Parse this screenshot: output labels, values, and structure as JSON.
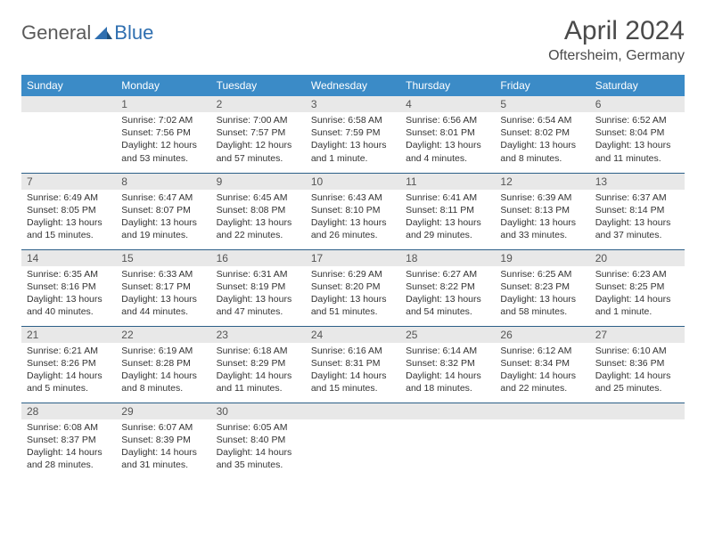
{
  "brand": {
    "word1": "General",
    "word2": "Blue"
  },
  "header": {
    "title": "April 2024",
    "location": "Oftersheim, Germany"
  },
  "colors": {
    "header_bg": "#3b8bc7",
    "header_text": "#ffffff",
    "daynum_bg": "#e8e8e8",
    "row_border": "#2c5f88",
    "text": "#333333",
    "title_text": "#4a4a4a",
    "brand_gray": "#5a5a5a",
    "brand_blue": "#2f6fb0"
  },
  "fonts": {
    "title_size_pt": 22,
    "location_size_pt": 12,
    "weekday_size_pt": 9,
    "daynum_size_pt": 9,
    "body_size_pt": 8
  },
  "weekdays": [
    "Sunday",
    "Monday",
    "Tuesday",
    "Wednesday",
    "Thursday",
    "Friday",
    "Saturday"
  ],
  "weeks": [
    [
      null,
      {
        "n": "1",
        "sunrise": "7:02 AM",
        "sunset": "7:56 PM",
        "daylight": "12 hours and 53 minutes."
      },
      {
        "n": "2",
        "sunrise": "7:00 AM",
        "sunset": "7:57 PM",
        "daylight": "12 hours and 57 minutes."
      },
      {
        "n": "3",
        "sunrise": "6:58 AM",
        "sunset": "7:59 PM",
        "daylight": "13 hours and 1 minute."
      },
      {
        "n": "4",
        "sunrise": "6:56 AM",
        "sunset": "8:01 PM",
        "daylight": "13 hours and 4 minutes."
      },
      {
        "n": "5",
        "sunrise": "6:54 AM",
        "sunset": "8:02 PM",
        "daylight": "13 hours and 8 minutes."
      },
      {
        "n": "6",
        "sunrise": "6:52 AM",
        "sunset": "8:04 PM",
        "daylight": "13 hours and 11 minutes."
      }
    ],
    [
      {
        "n": "7",
        "sunrise": "6:49 AM",
        "sunset": "8:05 PM",
        "daylight": "13 hours and 15 minutes."
      },
      {
        "n": "8",
        "sunrise": "6:47 AM",
        "sunset": "8:07 PM",
        "daylight": "13 hours and 19 minutes."
      },
      {
        "n": "9",
        "sunrise": "6:45 AM",
        "sunset": "8:08 PM",
        "daylight": "13 hours and 22 minutes."
      },
      {
        "n": "10",
        "sunrise": "6:43 AM",
        "sunset": "8:10 PM",
        "daylight": "13 hours and 26 minutes."
      },
      {
        "n": "11",
        "sunrise": "6:41 AM",
        "sunset": "8:11 PM",
        "daylight": "13 hours and 29 minutes."
      },
      {
        "n": "12",
        "sunrise": "6:39 AM",
        "sunset": "8:13 PM",
        "daylight": "13 hours and 33 minutes."
      },
      {
        "n": "13",
        "sunrise": "6:37 AM",
        "sunset": "8:14 PM",
        "daylight": "13 hours and 37 minutes."
      }
    ],
    [
      {
        "n": "14",
        "sunrise": "6:35 AM",
        "sunset": "8:16 PM",
        "daylight": "13 hours and 40 minutes."
      },
      {
        "n": "15",
        "sunrise": "6:33 AM",
        "sunset": "8:17 PM",
        "daylight": "13 hours and 44 minutes."
      },
      {
        "n": "16",
        "sunrise": "6:31 AM",
        "sunset": "8:19 PM",
        "daylight": "13 hours and 47 minutes."
      },
      {
        "n": "17",
        "sunrise": "6:29 AM",
        "sunset": "8:20 PM",
        "daylight": "13 hours and 51 minutes."
      },
      {
        "n": "18",
        "sunrise": "6:27 AM",
        "sunset": "8:22 PM",
        "daylight": "13 hours and 54 minutes."
      },
      {
        "n": "19",
        "sunrise": "6:25 AM",
        "sunset": "8:23 PM",
        "daylight": "13 hours and 58 minutes."
      },
      {
        "n": "20",
        "sunrise": "6:23 AM",
        "sunset": "8:25 PM",
        "daylight": "14 hours and 1 minute."
      }
    ],
    [
      {
        "n": "21",
        "sunrise": "6:21 AM",
        "sunset": "8:26 PM",
        "daylight": "14 hours and 5 minutes."
      },
      {
        "n": "22",
        "sunrise": "6:19 AM",
        "sunset": "8:28 PM",
        "daylight": "14 hours and 8 minutes."
      },
      {
        "n": "23",
        "sunrise": "6:18 AM",
        "sunset": "8:29 PM",
        "daylight": "14 hours and 11 minutes."
      },
      {
        "n": "24",
        "sunrise": "6:16 AM",
        "sunset": "8:31 PM",
        "daylight": "14 hours and 15 minutes."
      },
      {
        "n": "25",
        "sunrise": "6:14 AM",
        "sunset": "8:32 PM",
        "daylight": "14 hours and 18 minutes."
      },
      {
        "n": "26",
        "sunrise": "6:12 AM",
        "sunset": "8:34 PM",
        "daylight": "14 hours and 22 minutes."
      },
      {
        "n": "27",
        "sunrise": "6:10 AM",
        "sunset": "8:36 PM",
        "daylight": "14 hours and 25 minutes."
      }
    ],
    [
      {
        "n": "28",
        "sunrise": "6:08 AM",
        "sunset": "8:37 PM",
        "daylight": "14 hours and 28 minutes."
      },
      {
        "n": "29",
        "sunrise": "6:07 AM",
        "sunset": "8:39 PM",
        "daylight": "14 hours and 31 minutes."
      },
      {
        "n": "30",
        "sunrise": "6:05 AM",
        "sunset": "8:40 PM",
        "daylight": "14 hours and 35 minutes."
      },
      null,
      null,
      null,
      null
    ]
  ],
  "labels": {
    "sunrise": "Sunrise:",
    "sunset": "Sunset:",
    "daylight": "Daylight:"
  }
}
